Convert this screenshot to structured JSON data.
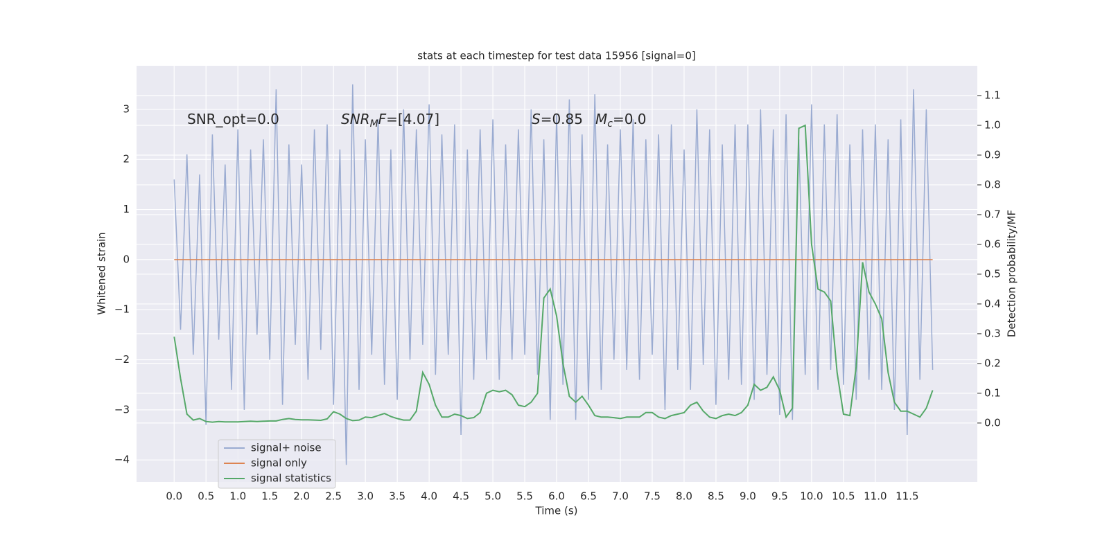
{
  "chart_data": {
    "type": "line",
    "title": "stats at each timestep for test data 15956 [signal=0]",
    "xlabel": "Time (s)",
    "ylabel": "Whitened strain",
    "y2label": "Detection probability/MF",
    "x": [
      0,
      0.1,
      0.2,
      0.3,
      0.4,
      0.5,
      0.6,
      0.7,
      0.8,
      0.9,
      1.0,
      1.1,
      1.2,
      1.3,
      1.4,
      1.5,
      1.6,
      1.7,
      1.8,
      1.9,
      2.0,
      2.1,
      2.2,
      2.3,
      2.4,
      2.5,
      2.6,
      2.7,
      2.8,
      2.9,
      3.0,
      3.1,
      3.2,
      3.3,
      3.4,
      3.5,
      3.6,
      3.7,
      3.8,
      3.9,
      4.0,
      4.1,
      4.2,
      4.3,
      4.4,
      4.5,
      4.6,
      4.7,
      4.8,
      4.9,
      5.0,
      5.1,
      5.2,
      5.3,
      5.4,
      5.5,
      5.6,
      5.7,
      5.8,
      5.9,
      6.0,
      6.1,
      6.2,
      6.3,
      6.4,
      6.5,
      6.6,
      6.7,
      6.8,
      6.9,
      7.0,
      7.1,
      7.2,
      7.3,
      7.4,
      7.5,
      7.6,
      7.7,
      7.8,
      7.9,
      8.0,
      8.1,
      8.2,
      8.3,
      8.4,
      8.5,
      8.6,
      8.7,
      8.8,
      8.9,
      9.0,
      9.1,
      9.2,
      9.3,
      9.4,
      9.5,
      9.6,
      9.7,
      9.8,
      9.9,
      10.0,
      10.1,
      10.2,
      10.3,
      10.4,
      10.5,
      10.6,
      10.7,
      10.8,
      10.9,
      11.0,
      11.1,
      11.2,
      11.3,
      11.4,
      11.5,
      11.6,
      11.7,
      11.8,
      11.9
    ],
    "series": [
      {
        "name": "signal+ noise",
        "color": "#9aabd1",
        "values": [
          1.6,
          -1.4,
          2.1,
          -1.9,
          1.7,
          -3.3,
          2.5,
          -1.6,
          1.9,
          -2.6,
          2.6,
          -3.0,
          2.2,
          -1.5,
          2.4,
          -2.0,
          3.4,
          -2.9,
          2.3,
          -1.7,
          1.9,
          -2.4,
          2.6,
          -1.8,
          2.7,
          -2.9,
          2.2,
          -4.1,
          3.5,
          -2.6,
          2.4,
          -1.9,
          2.8,
          -2.5,
          2.2,
          -2.8,
          3.0,
          -2.0,
          2.6,
          -1.7,
          3.1,
          -2.3,
          2.5,
          -1.9,
          2.7,
          -3.5,
          2.2,
          -2.4,
          2.6,
          -2.0,
          2.8,
          -2.4,
          2.3,
          -2.0,
          2.6,
          -1.9,
          3.0,
          -2.3,
          2.4,
          -3.2,
          2.9,
          -2.5,
          3.2,
          -3.2,
          2.5,
          -2.8,
          3.3,
          -2.6,
          2.3,
          -2.0,
          2.6,
          -2.2,
          2.8,
          -2.4,
          2.4,
          -1.9,
          2.5,
          -3.0,
          2.7,
          -2.2,
          2.2,
          -2.6,
          3.0,
          -2.1,
          2.6,
          -2.9,
          2.3,
          -2.4,
          2.7,
          -2.5,
          2.7,
          -2.8,
          3.0,
          -2.3,
          2.6,
          -3.1,
          2.9,
          -3.2,
          2.4,
          -2.3,
          3.1,
          -2.6,
          2.7,
          -2.2,
          2.9,
          -2.5,
          2.3,
          -2.8,
          2.6,
          -2.4,
          2.7,
          -2.6,
          2.4,
          -3.0,
          2.8,
          -3.5,
          3.4,
          -2.4,
          3.0,
          -2.2
        ]
      },
      {
        "name": "signal only",
        "color": "#dd8452",
        "values": [
          0,
          0,
          0,
          0,
          0,
          0,
          0,
          0,
          0,
          0,
          0,
          0,
          0,
          0,
          0,
          0,
          0,
          0,
          0,
          0,
          0,
          0,
          0,
          0,
          0,
          0,
          0,
          0,
          0,
          0,
          0,
          0,
          0,
          0,
          0,
          0,
          0,
          0,
          0,
          0,
          0,
          0,
          0,
          0,
          0,
          0,
          0,
          0,
          0,
          0,
          0,
          0,
          0,
          0,
          0,
          0,
          0,
          0,
          0,
          0,
          0,
          0,
          0,
          0,
          0,
          0,
          0,
          0,
          0,
          0,
          0,
          0,
          0,
          0,
          0,
          0,
          0,
          0,
          0,
          0,
          0,
          0,
          0,
          0,
          0,
          0,
          0,
          0,
          0,
          0,
          0,
          0,
          0,
          0,
          0,
          0,
          0,
          0,
          0,
          0,
          0,
          0,
          0,
          0,
          0,
          0,
          0,
          0,
          0,
          0,
          0,
          0,
          0,
          0,
          0,
          0,
          0,
          0,
          0,
          0
        ]
      },
      {
        "name": "signal statistics",
        "color": "#55a868",
        "axis": "y2",
        "values": [
          0.29,
          0.15,
          0.03,
          0.01,
          0.015,
          0.005,
          0.003,
          0.005,
          0.004,
          0.004,
          0.004,
          0.005,
          0.006,
          0.005,
          0.006,
          0.007,
          0.007,
          0.012,
          0.015,
          0.012,
          0.011,
          0.011,
          0.01,
          0.009,
          0.014,
          0.038,
          0.03,
          0.015,
          0.008,
          0.01,
          0.02,
          0.018,
          0.025,
          0.032,
          0.022,
          0.015,
          0.01,
          0.01,
          0.04,
          0.17,
          0.13,
          0.06,
          0.02,
          0.02,
          0.03,
          0.025,
          0.015,
          0.018,
          0.035,
          0.1,
          0.11,
          0.105,
          0.11,
          0.095,
          0.06,
          0.055,
          0.07,
          0.1,
          0.42,
          0.45,
          0.36,
          0.2,
          0.09,
          0.07,
          0.09,
          0.06,
          0.025,
          0.02,
          0.02,
          0.018,
          0.015,
          0.02,
          0.02,
          0.02,
          0.035,
          0.035,
          0.02,
          0.015,
          0.025,
          0.03,
          0.035,
          0.06,
          0.07,
          0.04,
          0.02,
          0.015,
          0.025,
          0.03,
          0.025,
          0.035,
          0.06,
          0.13,
          0.11,
          0.12,
          0.155,
          0.11,
          0.02,
          0.05,
          0.99,
          1.0,
          0.6,
          0.45,
          0.44,
          0.41,
          0.17,
          0.03,
          0.025,
          0.19,
          0.54,
          0.44,
          0.4,
          0.35,
          0.17,
          0.07,
          0.04,
          0.04,
          0.03,
          0.02,
          0.05,
          0.11
        ]
      }
    ],
    "xlim": [
      -0.59,
      12.6
    ],
    "ylim": [
      -4.44,
      3.87
    ],
    "y2lim": [
      -0.198,
      1.2
    ],
    "xticks": [
      {
        "value": 0,
        "label": "0.0"
      },
      {
        "value": 0.5,
        "label": "0.5"
      },
      {
        "value": 1,
        "label": "1.0"
      },
      {
        "value": 1.5,
        "label": "1.5"
      },
      {
        "value": 2,
        "label": "2.0"
      },
      {
        "value": 2.5,
        "label": "2.5"
      },
      {
        "value": 3,
        "label": "3.0"
      },
      {
        "value": 3.5,
        "label": "3.5"
      },
      {
        "value": 4,
        "label": "4.0"
      },
      {
        "value": 4.5,
        "label": "4.5"
      },
      {
        "value": 5,
        "label": "5.0"
      },
      {
        "value": 5.5,
        "label": "5.5"
      },
      {
        "value": 6,
        "label": "6.0"
      },
      {
        "value": 6.5,
        "label": "6.5"
      },
      {
        "value": 7,
        "label": "7.0"
      },
      {
        "value": 7.5,
        "label": "7.5"
      },
      {
        "value": 8,
        "label": "8.0"
      },
      {
        "value": 8.5,
        "label": "8.5"
      },
      {
        "value": 9,
        "label": "9.0"
      },
      {
        "value": 9.5,
        "label": "9.5"
      },
      {
        "value": 10,
        "label": "10.0"
      },
      {
        "value": 10.5,
        "label": "10.5"
      },
      {
        "value": 11,
        "label": "11.0"
      },
      {
        "value": 11.5,
        "label": "11.5"
      }
    ],
    "yticks": [
      {
        "value": -4,
        "label": "−4"
      },
      {
        "value": -3,
        "label": "−3"
      },
      {
        "value": -2,
        "label": "−2"
      },
      {
        "value": -1,
        "label": "−1"
      },
      0,
      1,
      2,
      3
    ],
    "y2ticks": [
      {
        "value": 0,
        "label": "0.0"
      },
      {
        "value": 0.1,
        "label": "0.1"
      },
      {
        "value": 0.2,
        "label": "0.2"
      },
      {
        "value": 0.3,
        "label": "0.3"
      },
      {
        "value": 0.4,
        "label": "0.4"
      },
      {
        "value": 0.5,
        "label": "0.5"
      },
      {
        "value": 0.6,
        "label": "0.6"
      },
      {
        "value": 0.7,
        "label": "0.7"
      },
      {
        "value": 0.8,
        "label": "0.8"
      },
      {
        "value": 0.9,
        "label": "0.9"
      },
      {
        "value": 1,
        "label": "1.0"
      },
      {
        "value": 1.1,
        "label": "1.1"
      }
    ],
    "grid": true,
    "legend": "lower left",
    "annotations": [
      [
        {
          "text": "SNR_opt=0.0"
        }
      ],
      [
        {
          "text": "SNR",
          "style": "italic"
        },
        {
          "text": "M",
          "style": "italic-sub"
        },
        {
          "text": "F",
          "style": "italic"
        },
        {
          "text": "=[4.07]"
        }
      ],
      [
        {
          "text": "S",
          "style": "italic"
        },
        {
          "text": "=0.85"
        }
      ],
      [
        {
          "text": "M",
          "style": "italic"
        },
        {
          "text": "c",
          "style": "italic-sub"
        },
        {
          "text": "=0.0"
        }
      ]
    ]
  }
}
